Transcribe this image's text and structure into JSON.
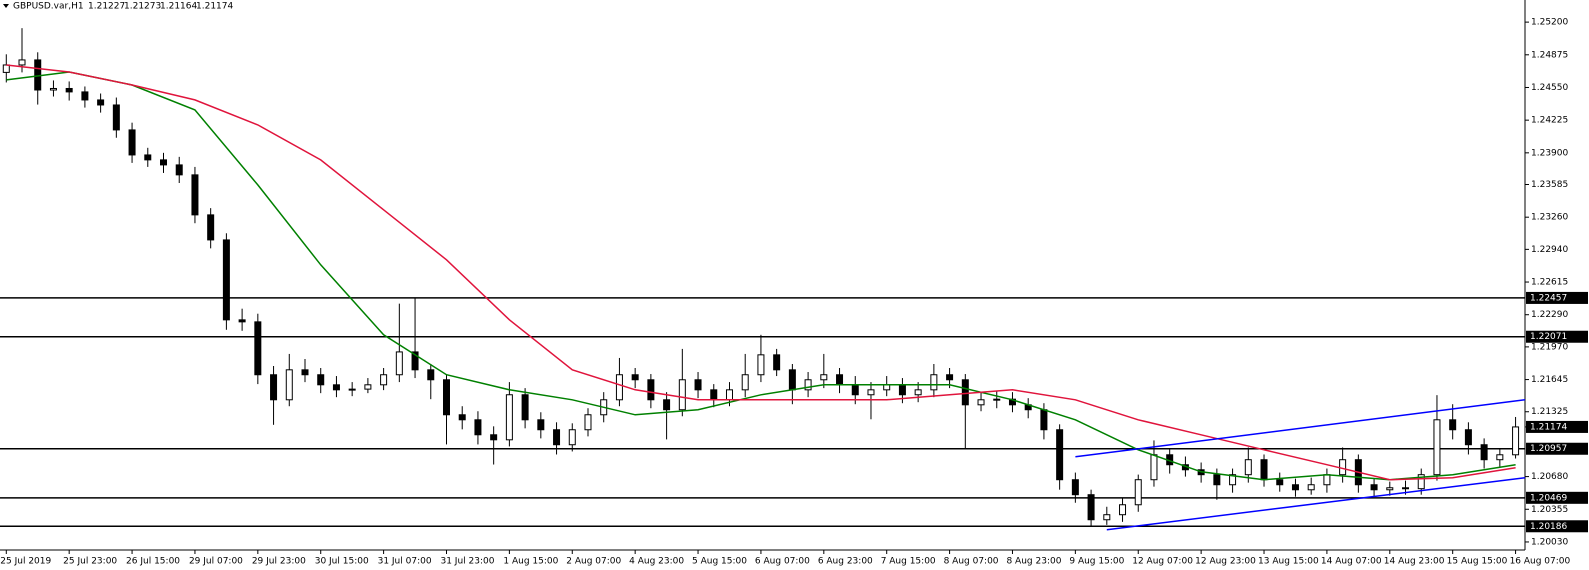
{
  "chart_data": {
    "type": "candlestick",
    "title": "GBPUSD.var,H1",
    "quote": [
      1.21227,
      1.21273,
      1.21164,
      1.21174
    ],
    "open": [
      1.247,
      1.24774,
      1.24824,
      1.24525,
      1.2454,
      1.24506,
      1.24426,
      1.24376,
      1.24128,
      1.23879,
      1.2383,
      1.2378,
      1.23681,
      1.23283,
      1.23034,
      1.22239,
      1.22219,
      1.21693,
      1.21444,
      1.21742,
      1.21693,
      1.21593,
      1.21543,
      1.2155,
      1.21593,
      1.21693,
      1.2192,
      1.21742,
      1.21643,
      1.21295,
      1.21245,
      1.21096,
      1.21046,
      1.21494,
      1.21245,
      1.21146,
      1.20997,
      1.21146,
      1.21295,
      1.21444,
      1.21693,
      1.21643,
      1.21444,
      1.21345,
      1.21643,
      1.21543,
      1.21444,
      1.21543,
      1.21693,
      1.21891,
      1.21742,
      1.21543,
      1.21643,
      1.21693,
      1.21593,
      1.21494,
      1.21543,
      1.21593,
      1.21494,
      1.21543,
      1.21693,
      1.21643,
      1.21394,
      1.21444,
      1.2145,
      1.21394,
      1.21345,
      1.21146,
      1.20649,
      1.205,
      1.20251,
      1.20301,
      1.204,
      1.20649,
      1.20897,
      1.20798,
      1.20748,
      1.20699,
      1.20599,
      1.20699,
      1.20848,
      1.20649,
      1.20599,
      1.20549,
      1.20599,
      1.20699,
      1.20848,
      1.20599,
      1.20549,
      1.20569,
      1.2056,
      1.20699,
      1.21245,
      1.21146,
      1.20997,
      1.20848,
      1.20897
    ],
    "high": [
      1.2488,
      1.2514,
      1.249,
      1.2462,
      1.2461,
      1.2456,
      1.2449,
      1.2445,
      1.242,
      1.2395,
      1.239,
      1.2386,
      1.2376,
      1.2335,
      1.231,
      1.2235,
      1.223,
      1.2178,
      1.219,
      1.2185,
      1.2176,
      1.2168,
      1.2162,
      1.2166,
      1.2176,
      1.224,
      1.2246,
      1.218,
      1.217,
      1.2138,
      1.2133,
      1.2118,
      1.2162,
      1.2156,
      1.2132,
      1.2122,
      1.2121,
      1.2136,
      1.2152,
      1.2186,
      1.2176,
      1.217,
      1.2152,
      1.2195,
      1.2172,
      1.216,
      1.2162,
      1.219,
      1.2209,
      1.2195,
      1.218,
      1.2172,
      1.219,
      1.2176,
      1.2168,
      1.2162,
      1.2168,
      1.2166,
      1.2162,
      1.218,
      1.2176,
      1.217,
      1.2152,
      1.2153,
      1.2152,
      1.2146,
      1.2141,
      1.212,
      1.2072,
      1.2055,
      1.2038,
      1.2047,
      1.207,
      1.2104,
      1.2096,
      1.2088,
      1.2082,
      1.2076,
      1.2076,
      1.2097,
      1.209,
      1.2072,
      1.2066,
      1.2067,
      1.2076,
      1.2097,
      1.209,
      1.2066,
      1.2063,
      1.2064,
      1.2076,
      1.2149,
      1.214,
      1.2122,
      1.2106,
      1.2096,
      1.21273
    ],
    "low": [
      1.246,
      1.247,
      1.2438,
      1.2446,
      1.2442,
      1.2435,
      1.243,
      1.2405,
      1.238,
      1.2376,
      1.237,
      1.236,
      1.232,
      1.2295,
      1.2214,
      1.2213,
      1.216,
      1.21195,
      1.2138,
      1.2162,
      1.2151,
      1.2147,
      1.2148,
      1.2151,
      1.2154,
      1.2162,
      1.2166,
      1.2145,
      1.21,
      1.2115,
      1.21,
      1.208,
      1.2098,
      1.2116,
      1.2106,
      1.209,
      1.2093,
      1.2108,
      1.2122,
      1.2138,
      1.2156,
      1.2136,
      1.2105,
      1.2128,
      1.2146,
      1.2137,
      1.2138,
      1.2147,
      1.2162,
      1.2168,
      1.214,
      1.2147,
      1.2156,
      1.2151,
      1.214,
      1.2125,
      1.2148,
      1.2141,
      1.2142,
      1.2147,
      1.2156,
      1.2095,
      1.2133,
      1.2136,
      1.2132,
      1.2126,
      1.2105,
      1.2055,
      1.2042,
      1.2018,
      1.202,
      1.2023,
      1.2033,
      1.2058,
      1.2071,
      1.2068,
      1.2062,
      1.2045,
      1.2052,
      1.2062,
      1.2058,
      1.2053,
      1.2048,
      1.205,
      1.2052,
      1.2062,
      1.2052,
      1.2048,
      1.2049,
      1.205,
      1.205,
      1.2064,
      1.2105,
      1.209,
      1.2076,
      1.2078,
      1.2086
    ],
    "close": [
      1.24774,
      1.24824,
      1.24525,
      1.2454,
      1.24506,
      1.24426,
      1.24376,
      1.24128,
      1.23879,
      1.2383,
      1.2378,
      1.23681,
      1.23283,
      1.23034,
      1.22239,
      1.22219,
      1.21693,
      1.21444,
      1.21742,
      1.21693,
      1.21593,
      1.21543,
      1.2155,
      1.21593,
      1.21693,
      1.2192,
      1.21742,
      1.21643,
      1.21295,
      1.21245,
      1.21096,
      1.21046,
      1.21494,
      1.21245,
      1.21146,
      1.20997,
      1.21146,
      1.21295,
      1.21444,
      1.21693,
      1.21643,
      1.21444,
      1.21345,
      1.21643,
      1.21543,
      1.21444,
      1.21543,
      1.21693,
      1.21891,
      1.21742,
      1.21543,
      1.21643,
      1.21693,
      1.21593,
      1.21494,
      1.21543,
      1.21593,
      1.21494,
      1.21543,
      1.21693,
      1.21643,
      1.21394,
      1.21444,
      1.2145,
      1.21394,
      1.21345,
      1.21146,
      1.20649,
      1.205,
      1.20251,
      1.20301,
      1.204,
      1.20649,
      1.20897,
      1.20798,
      1.20748,
      1.20699,
      1.20599,
      1.20699,
      1.20848,
      1.20649,
      1.20599,
      1.20549,
      1.20599,
      1.20699,
      1.20848,
      1.20599,
      1.20549,
      1.20569,
      1.2056,
      1.20699,
      1.21245,
      1.21146,
      1.20997,
      1.20848,
      1.20897,
      1.21174
    ],
    "bull_color": "#ffffff",
    "bear_color": "#000000",
    "xlim": [
      -0.4,
      96.6
    ],
    "xticks": [
      {
        "value": 0,
        "label": "25 Jul 2019"
      },
      {
        "value": 4,
        "label": "25 Jul 23:00"
      },
      {
        "value": 8,
        "label": "26 Jul 15:00"
      },
      {
        "value": 12,
        "label": "29 Jul 07:00"
      },
      {
        "value": 16,
        "label": "29 Jul 23:00"
      },
      {
        "value": 20,
        "label": "30 Jul 15:00"
      },
      {
        "value": 24,
        "label": "31 Jul 07:00"
      },
      {
        "value": 28,
        "label": "31 Jul 23:00"
      },
      {
        "value": 32,
        "label": "1 Aug 15:00"
      },
      {
        "value": 36,
        "label": "2 Aug 07:00"
      },
      {
        "value": 40,
        "label": "4 Aug 23:00"
      },
      {
        "value": 44,
        "label": "5 Aug 15:00"
      },
      {
        "value": 48,
        "label": "6 Aug 07:00"
      },
      {
        "value": 52,
        "label": "6 Aug 23:00"
      },
      {
        "value": 56,
        "label": "7 Aug 15:00"
      },
      {
        "value": 60,
        "label": "8 Aug 07:00"
      },
      {
        "value": 64,
        "label": "8 Aug 23:00"
      },
      {
        "value": 68,
        "label": "9 Aug 15:00"
      },
      {
        "value": 72,
        "label": "12 Aug 07:00"
      },
      {
        "value": 76,
        "label": "12 Aug 23:00"
      },
      {
        "value": 80,
        "label": "13 Aug 15:00"
      },
      {
        "value": 84,
        "label": "14 Aug 07:00"
      },
      {
        "value": 88,
        "label": "14 Aug 23:00"
      },
      {
        "value": 92,
        "label": "15 Aug 15:00"
      },
      {
        "value": 96,
        "label": "16 Aug 07:00"
      }
    ],
    "ylim": [
      1.1995,
      1.2542
    ],
    "yticks": [
      {
        "value": 1.252,
        "label": "1.25200"
      },
      {
        "value": 1.24875,
        "label": "1.24875"
      },
      {
        "value": 1.2455,
        "label": "1.24550"
      },
      {
        "value": 1.24225,
        "label": "1.24225"
      },
      {
        "value": 1.239,
        "label": "1.23900"
      },
      {
        "value": 1.23585,
        "label": "1.23585"
      },
      {
        "value": 1.2326,
        "label": "1.23260"
      },
      {
        "value": 1.2294,
        "label": "1.22940"
      },
      {
        "value": 1.22615,
        "label": "1.22615"
      },
      {
        "value": 1.2229,
        "label": "1.22290"
      },
      {
        "value": 1.2197,
        "label": "1.21970"
      },
      {
        "value": 1.21645,
        "label": "1.21645"
      },
      {
        "value": 1.21325,
        "label": "1.21325"
      },
      {
        "value": 1.2068,
        "label": "1.20680"
      },
      {
        "value": 1.20355,
        "label": "1.20355"
      },
      {
        "value": 1.2003,
        "label": "1.20030"
      }
    ],
    "lines": [
      {
        "color": "#008000",
        "x": [
          0,
          4,
          8,
          12,
          16,
          20,
          24,
          28,
          32,
          36,
          40,
          44,
          48,
          52,
          56,
          60,
          64,
          68,
          72,
          76,
          80,
          84,
          88,
          92,
          96
        ],
        "values": [
          1.24625,
          1.24704,
          1.24575,
          1.24327,
          1.23581,
          1.22786,
          1.2209,
          1.21693,
          1.21543,
          1.21444,
          1.21295,
          1.21345,
          1.21494,
          1.21593,
          1.21593,
          1.21593,
          1.21444,
          1.21245,
          1.20947,
          1.20728,
          1.20649,
          1.20699,
          1.20649,
          1.20699,
          1.20798
        ]
      },
      {
        "color": "#e0143c",
        "x": [
          0,
          4,
          8,
          12,
          16,
          20,
          24,
          28,
          32,
          36,
          40,
          44,
          48,
          52,
          56,
          60,
          64,
          68,
          72,
          76,
          80,
          84,
          88,
          92,
          96
        ],
        "values": [
          1.24774,
          1.24704,
          1.24575,
          1.24426,
          1.24178,
          1.2383,
          1.23333,
          1.22836,
          1.22239,
          1.21742,
          1.21543,
          1.21444,
          1.21444,
          1.21444,
          1.21444,
          1.21494,
          1.21543,
          1.21444,
          1.21245,
          1.21096,
          1.20947,
          1.20798,
          1.20649,
          1.20669,
          1.20768
        ]
      }
    ],
    "trendlines": [
      {
        "color": "#0000ff",
        "x": [
          68,
          96.6
        ],
        "values": [
          1.20877,
          1.21444
        ]
      },
      {
        "color": "#0000ff",
        "x": [
          70,
          96.6
        ],
        "values": [
          1.20152,
          1.20669
        ]
      }
    ],
    "levels": [
      1.22457,
      1.22071,
      1.20957,
      1.20469,
      1.20186
    ],
    "last_price": 1.21174
  }
}
